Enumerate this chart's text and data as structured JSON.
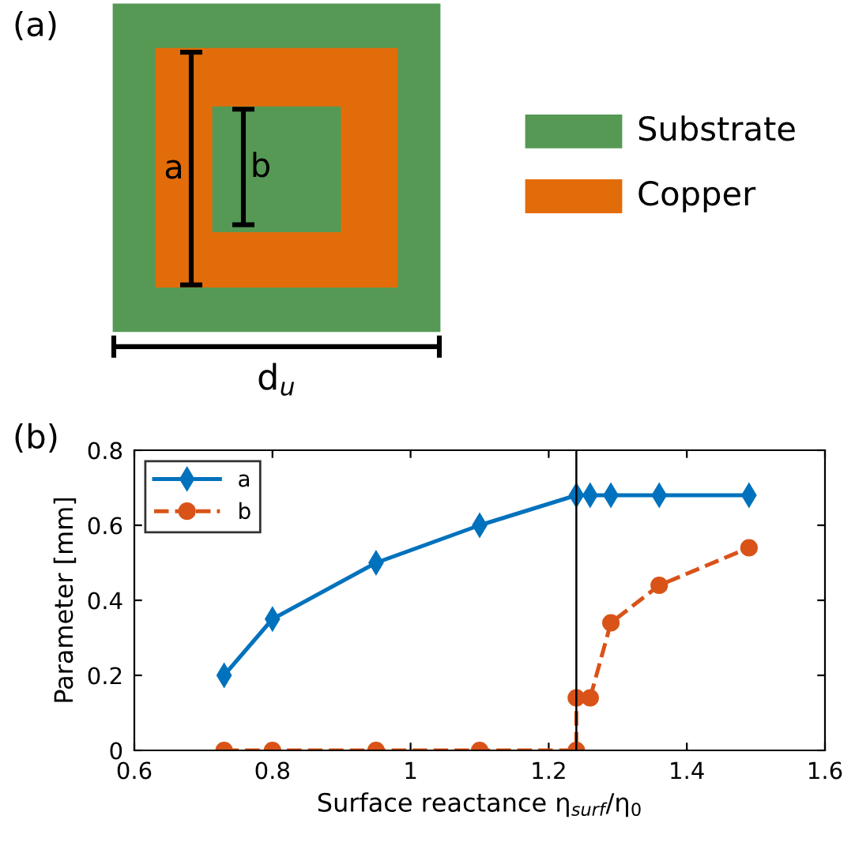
{
  "chart_data": [
    {
      "type": "other",
      "categories": [
        "Substrate",
        "Copper"
      ],
      "colors": [
        "#559955",
        "#e36c0a"
      ],
      "annotations": [
        "(a)",
        "a",
        "b",
        "d$_{u}$"
      ]
    },
    {
      "type": "line",
      "xlabel": "Surface reactance η$_{surf}$/η$_{0}$",
      "ylabel": "Parameter [mm]",
      "annotations": [
        "(b)"
      ],
      "xlim": [
        0.6,
        1.6
      ],
      "xticks": [
        0.6,
        0.8,
        1,
        1.2,
        1.4,
        1.6
      ],
      "ylim": [
        0,
        0.8
      ],
      "yticks": [
        0,
        0.2,
        0.4,
        0.6,
        0.8
      ],
      "legend": "top left",
      "ref_lines": [
        {
          "axis": "x",
          "value": 1.24,
          "color": "#000000"
        }
      ],
      "series": [
        {
          "name": "a",
          "color": "#0072bd",
          "marker": "diamond",
          "line_style": "solid",
          "x": [
            0.73,
            0.8,
            0.95,
            1.1,
            1.24,
            1.26,
            1.29,
            1.36,
            1.49
          ],
          "values": [
            0.2,
            0.35,
            0.5,
            0.6,
            0.68,
            0.68,
            0.68,
            0.68,
            0.68
          ]
        },
        {
          "name": "b",
          "color": "#d95319",
          "marker": "circle",
          "line_style": "dashed",
          "x": [
            0.73,
            0.8,
            0.95,
            1.1,
            1.24,
            1.24,
            1.26,
            1.29,
            1.36,
            1.49
          ],
          "values": [
            0,
            0,
            0,
            0,
            0,
            0.14,
            0.14,
            0.34,
            0.44,
            0.54
          ]
        }
      ]
    }
  ]
}
